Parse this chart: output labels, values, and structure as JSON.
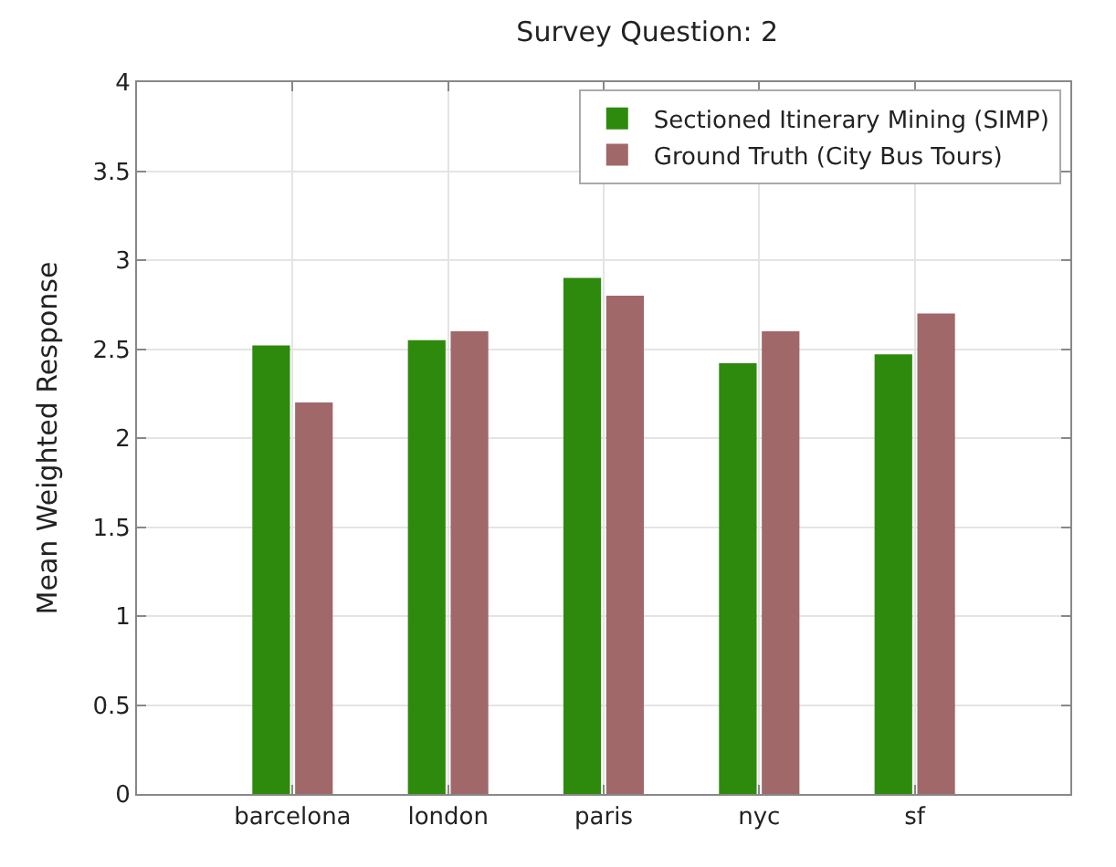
{
  "chart_data": {
    "type": "bar",
    "title": "Survey Question: 2",
    "ylabel": "Mean Weighted Response",
    "categories": [
      "barcelona",
      "london",
      "paris",
      "nyc",
      "sf"
    ],
    "series": [
      {
        "name": "Sectioned Itinerary Mining (SIMP)",
        "color": "#2e8a0c",
        "values": [
          2.52,
          2.55,
          2.9,
          2.42,
          2.47
        ]
      },
      {
        "name": "Ground Truth (City Bus Tours)",
        "color": "#a06868",
        "values": [
          2.2,
          2.6,
          2.8,
          2.6,
          2.7
        ]
      }
    ],
    "ylim": [
      0,
      4
    ],
    "yticks": [
      0,
      0.5,
      1,
      1.5,
      2,
      2.5,
      3,
      3.5,
      4
    ],
    "grid": true,
    "legend": "top right"
  }
}
